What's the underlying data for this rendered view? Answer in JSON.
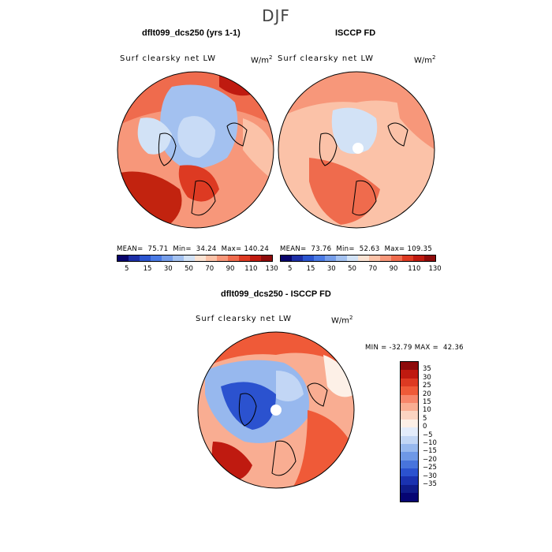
{
  "season": "DJF",
  "panels": [
    {
      "title": "dflt099_dcs250 (yrs 1-1)",
      "variable": "Surf clearsky net LW",
      "units": "W/m",
      "units_sup": "2",
      "stats": "MEAN=  75.71  Min=  34.24  Max= 140.24"
    },
    {
      "title": "ISCCP FD",
      "variable": "Surf clearsky net LW",
      "units": "W/m",
      "units_sup": "2",
      "stats": "MEAN=  73.76  Min=  52.63  Max= 109.35"
    },
    {
      "title": "dflt099_dcs250 - ISCCP FD",
      "variable": "Surf clearsky net LW",
      "units": "W/m",
      "units_sup": "2",
      "stats": "MIN = -32.79 MAX =  42.36"
    }
  ],
  "abs_colorbar": {
    "colors": [
      "#08046b",
      "#1c2ea6",
      "#2b55cf",
      "#4a7ae4",
      "#759de9",
      "#a3c1f0",
      "#d2e2f6",
      "#fbe3d3",
      "#fbc2a8",
      "#f7977a",
      "#ef6b4d",
      "#dd3a22",
      "#bf1a10",
      "#8e0b0b"
    ],
    "labels": [
      "5",
      "15",
      "30",
      "50",
      "70",
      "90",
      "110",
      "130"
    ]
  },
  "diff_colorbar": {
    "colors": [
      "#8e0b0b",
      "#bf1a10",
      "#dd3a22",
      "#ef5a38",
      "#f7866a",
      "#f9ad92",
      "#fbd4c1",
      "#fdf0e7",
      "#e3ecfb",
      "#c2d6f5",
      "#97b8ee",
      "#6e98e6",
      "#4874dc",
      "#2b52cf",
      "#1a32b0",
      "#0f1c8a",
      "#060573"
    ],
    "labels": [
      "35",
      "30",
      "25",
      "20",
      "15",
      "10",
      "5",
      "0",
      "−5",
      "−10",
      "−15",
      "−20",
      "−25",
      "−30",
      "−35"
    ]
  },
  "colors": {
    "land_outline": "#000000",
    "warm_strong": "#c2230f",
    "warm": "#ef6b4d",
    "warm_light": "#fbc2a8",
    "neutral": "#fbe8dc",
    "cool_light": "#c8dbf6",
    "cool": "#7aa2ea",
    "cool_strong": "#2b55cf"
  }
}
